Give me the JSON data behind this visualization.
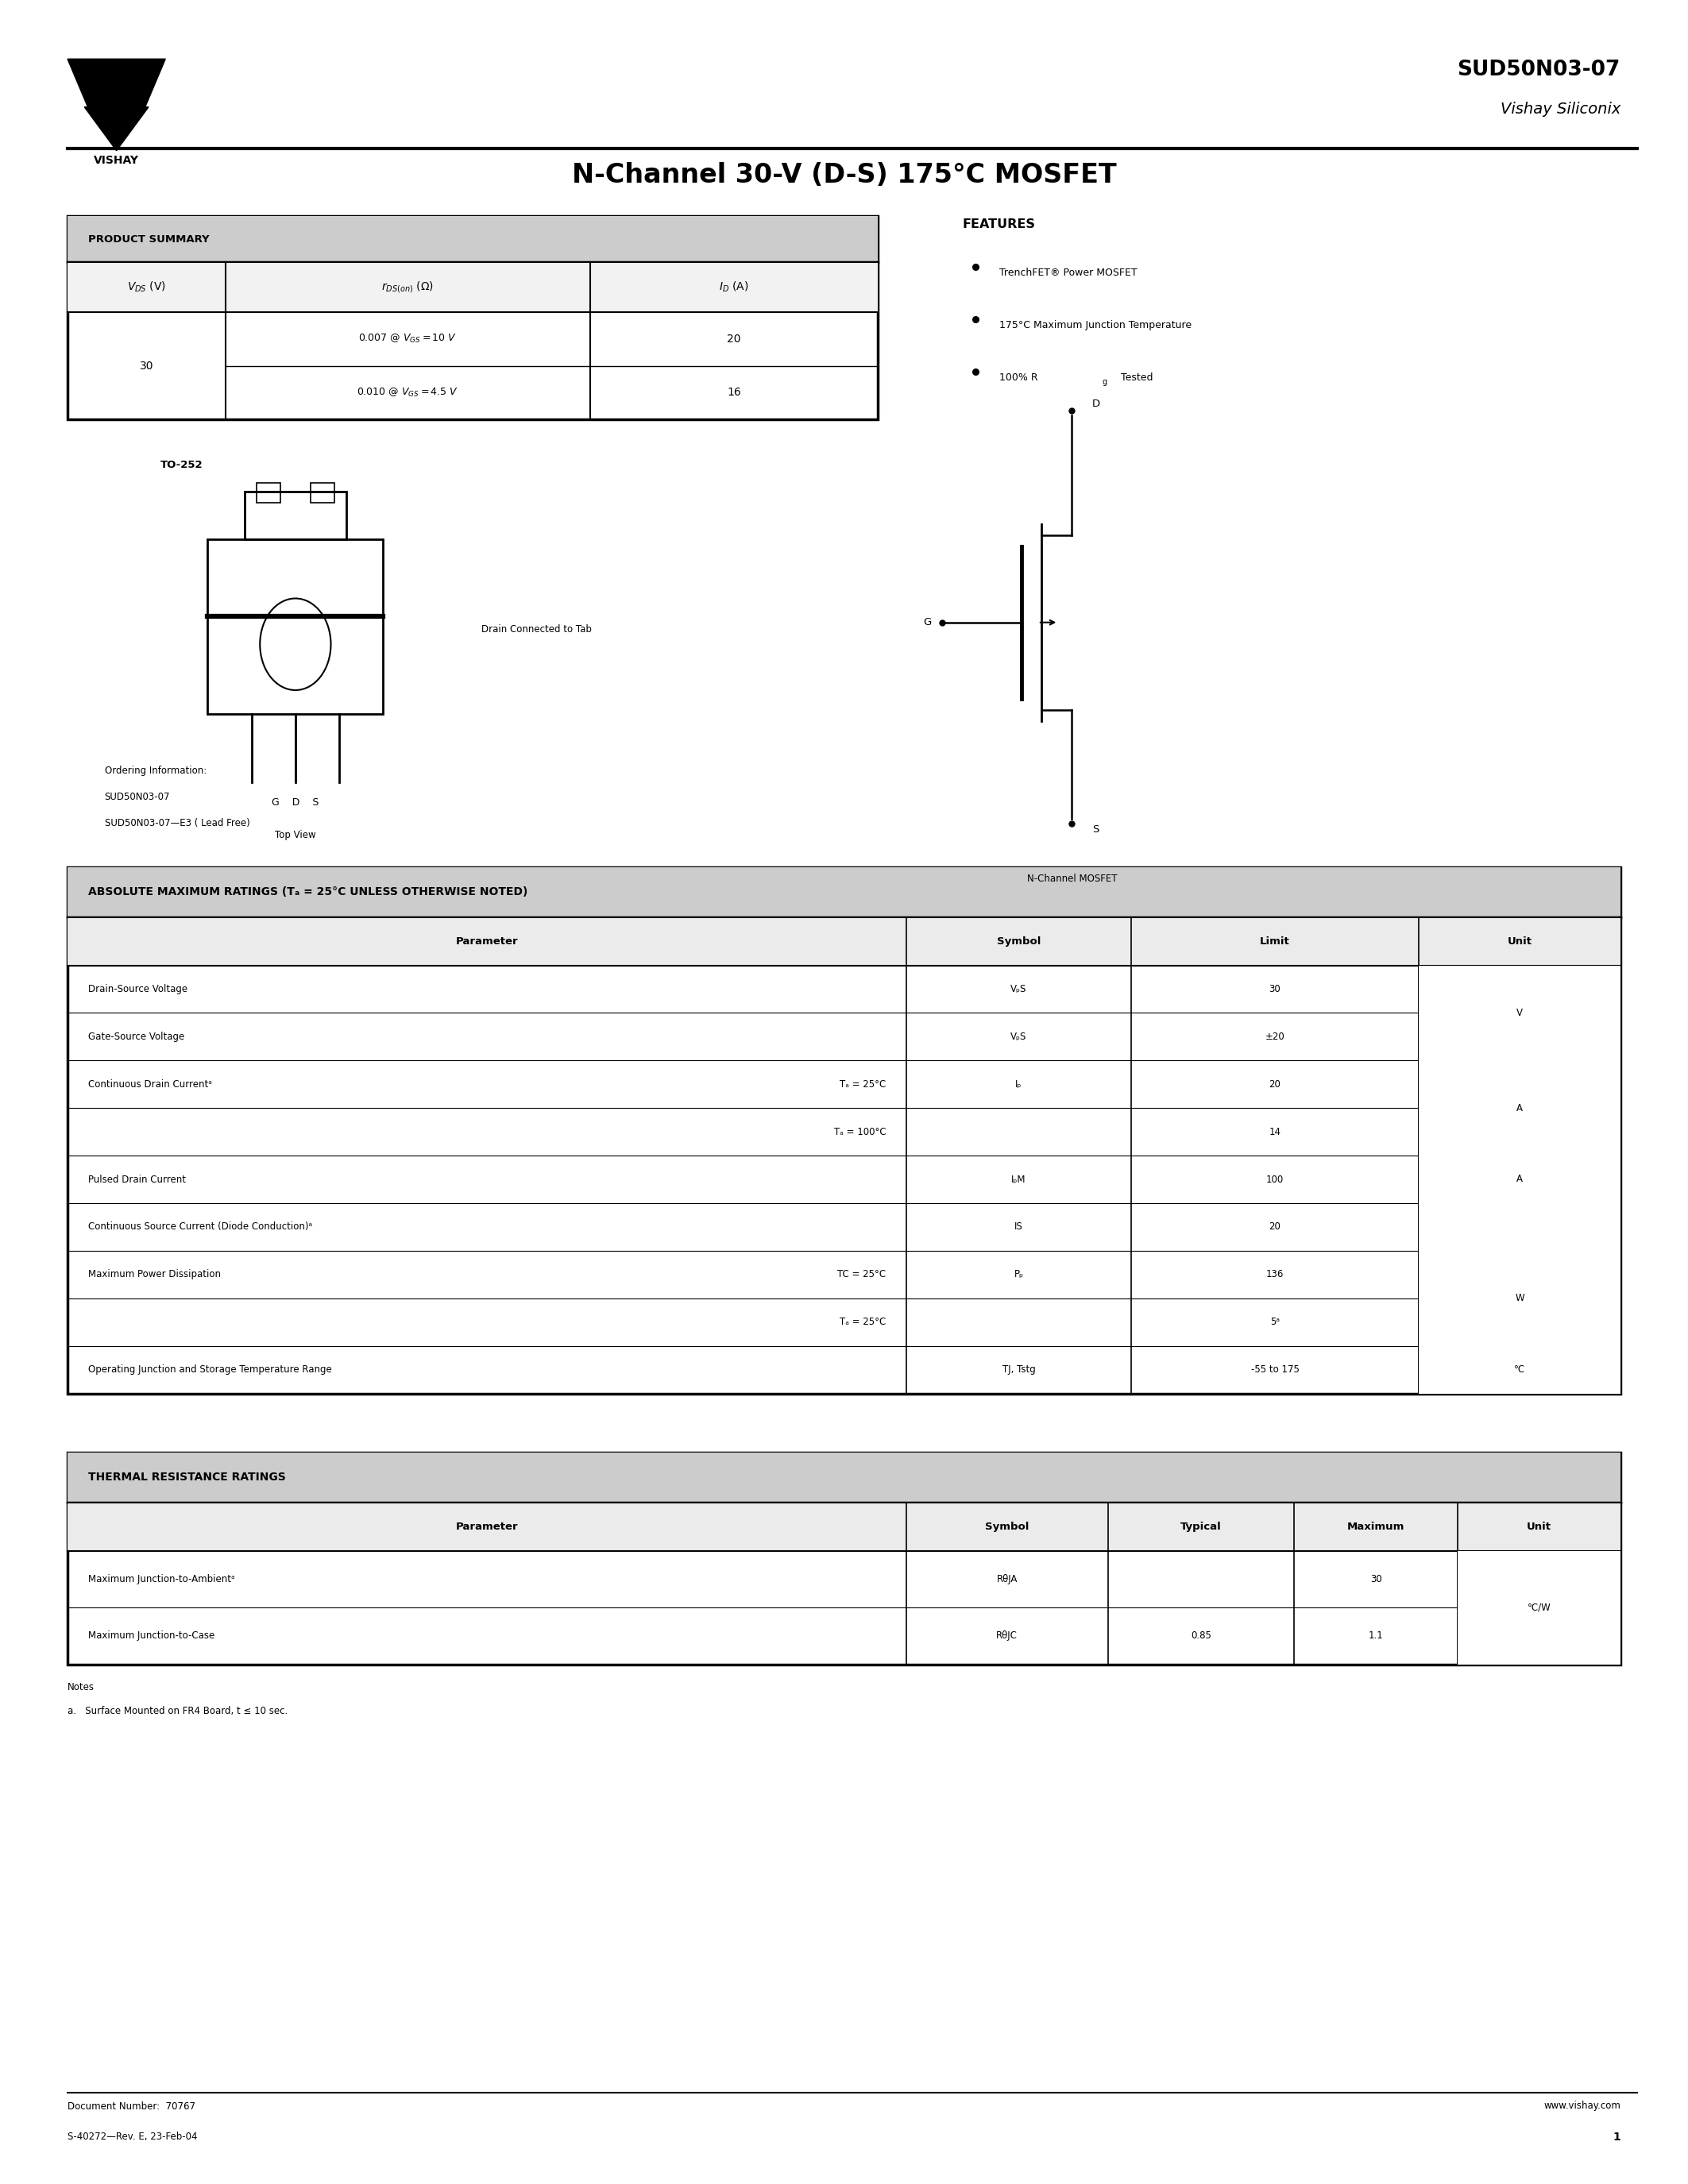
{
  "bg_color": "#ffffff",
  "page_width": 21.25,
  "page_height": 27.5,
  "part_number": "SUD50N03-07",
  "company": "Vishay Siliconix",
  "title": "N-Channel 30-V (D-S) 175°C MOSFET",
  "features_title": "FEATURES",
  "features": [
    "TrenchFET® Power MOSFET",
    "175°C Maximum Junction Temperature",
    "100% Rg Tested"
  ],
  "product_summary_title": "PRODUCT SUMMARY",
  "abs_max_title": "ABSOLUTE MAXIMUM RATINGS (Tₐ = 25°C UNLESS OTHERWISE NOTED)",
  "thermal_title": "THERMAL RESISTANCE RATINGS",
  "doc_number": "Document Number:  70767",
  "doc_rev": "S-40272—Rev. E, 23-Feb-04",
  "website": "www.vishay.com",
  "page_num": "1",
  "order1": "SUD50N03-07",
  "order2": "SUD50N03-07—E3 ( Lead Free)",
  "mosfet_label": "N-Channel MOSFET",
  "ordering_info": "Ordering Information:",
  "package_label2": "Drain Connected to Tab"
}
